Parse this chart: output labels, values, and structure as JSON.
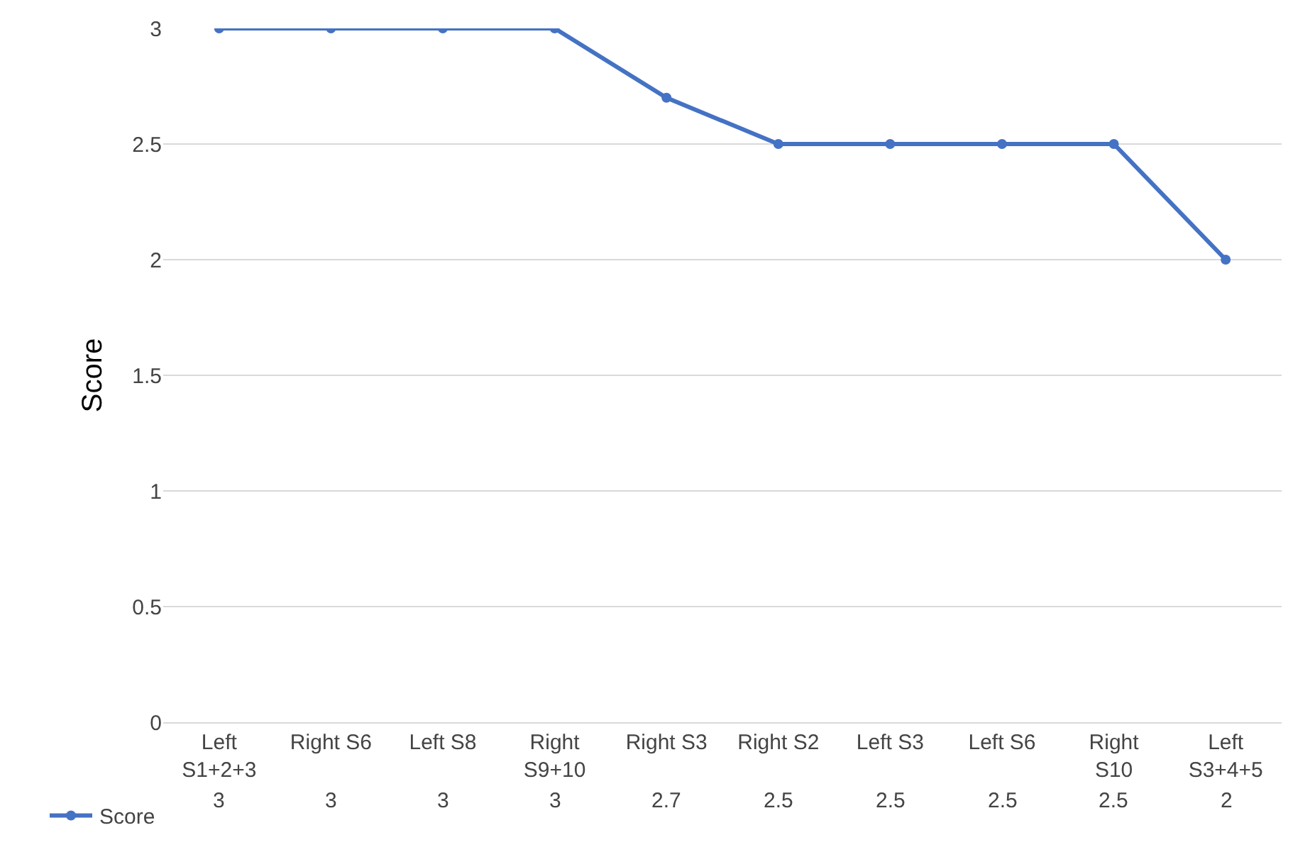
{
  "chart_data": {
    "type": "line",
    "ylabel": "Score",
    "categories": [
      "Left S1+2+3",
      "Right S6",
      "Left S8",
      "Right S9+10",
      "Right S3",
      "Right S2",
      "Left S3",
      "Left S6",
      "Right S10",
      "Left S3+4+5"
    ],
    "series": [
      {
        "name": "Score",
        "color": "#4472c4",
        "values": [
          3,
          3,
          3,
          3,
          2.7,
          2.5,
          2.5,
          2.5,
          2.5,
          2
        ]
      }
    ],
    "ylim": [
      0,
      3
    ],
    "yticks": [
      0,
      0.5,
      1,
      1.5,
      2,
      2.5,
      3
    ],
    "grid": "y",
    "marker": "circle",
    "line_style": "solid",
    "data_labels": true,
    "legend": "bottom left"
  }
}
